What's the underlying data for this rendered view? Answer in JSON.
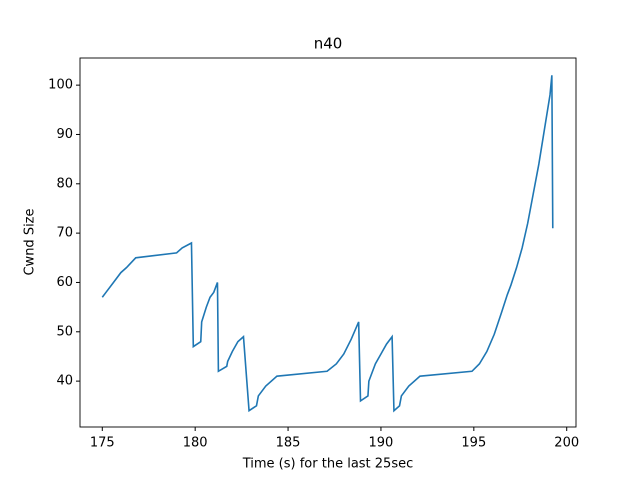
{
  "chart_data": {
    "type": "line",
    "title": "n40",
    "x_label": "Time (s) for the last 25sec",
    "y_label": "Cwnd Size",
    "x": [
      175.0,
      175.2,
      175.6,
      176.0,
      176.3,
      176.8,
      179.0,
      179.3,
      179.8,
      179.9,
      180.3,
      180.35,
      180.6,
      180.8,
      181.0,
      181.2,
      181.25,
      181.7,
      181.75,
      182.0,
      182.3,
      182.6,
      182.9,
      183.3,
      183.4,
      183.8,
      184.4,
      187.1,
      187.6,
      188.0,
      188.4,
      188.8,
      188.9,
      189.3,
      189.35,
      189.7,
      190.0,
      190.3,
      190.6,
      190.7,
      191.0,
      191.1,
      191.5,
      192.1,
      194.9,
      195.3,
      195.7,
      196.1,
      196.5,
      196.8,
      197.0,
      197.3,
      197.6,
      197.9,
      198.2,
      198.5,
      198.8,
      199.1,
      199.2,
      199.25
    ],
    "series": [
      {
        "name": "n40",
        "color": "#1f77b4",
        "values": [
          57,
          58,
          60,
          62,
          63,
          65,
          66,
          67,
          68,
          47,
          48,
          52,
          55,
          57,
          58,
          60,
          42,
          43,
          44,
          46,
          48,
          49,
          34,
          35,
          37,
          39,
          41,
          42,
          43.5,
          45.5,
          48.5,
          52,
          36,
          37,
          40,
          43.5,
          45.5,
          47.5,
          49,
          34,
          35,
          37,
          39,
          41,
          42,
          43.5,
          46,
          49.5,
          54,
          57.5,
          59.5,
          63,
          67,
          72,
          78,
          84,
          91,
          98,
          102,
          71
        ]
      }
    ],
    "xlim": [
      173.8,
      200.5
    ],
    "ylim": [
      30.7,
      105.5
    ],
    "xticks": [
      175,
      180,
      185,
      190,
      195,
      200
    ],
    "yticks": [
      40,
      50,
      60,
      70,
      80,
      90,
      100
    ]
  }
}
